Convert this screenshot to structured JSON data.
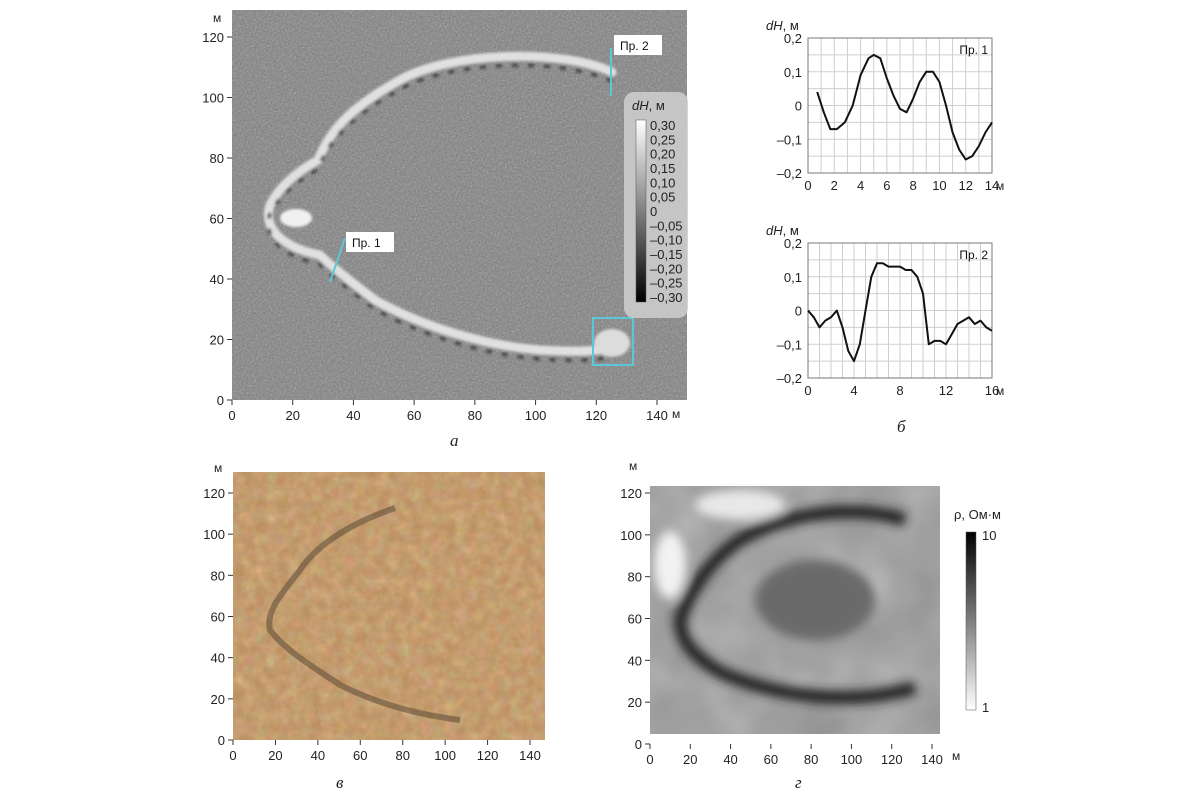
{
  "unit_m": "м",
  "panel_a": {
    "caption": "а",
    "x_ticks": [
      "0",
      "20",
      "40",
      "60",
      "80",
      "100",
      "120",
      "140"
    ],
    "y_ticks": [
      "0",
      "20",
      "40",
      "60",
      "80",
      "100",
      "120"
    ],
    "profile1_label": "Пр. 1",
    "profile2_label": "Пр. 2",
    "colorbar": {
      "title_var": "dH",
      "title_unit": ", м",
      "labels": [
        "0,30",
        "0,25",
        "0,20",
        "0,15",
        "0,10",
        "0,05",
        "0",
        "–0,05",
        "–0,10",
        "–0,15",
        "–0,20",
        "–0,25",
        "–0,30"
      ]
    }
  },
  "panel_b": {
    "caption": "б"
  },
  "chart_data": [
    {
      "type": "line",
      "panel": "б",
      "ylabel_var": "dH",
      "ylabel_unit": ", м",
      "series_label": "Пр. 1",
      "xlim": [
        0,
        14
      ],
      "ylim": [
        -0.2,
        0.2
      ],
      "x_ticks": [
        "0",
        "2",
        "4",
        "6",
        "8",
        "10",
        "12",
        "14"
      ],
      "y_ticks": [
        "0,2",
        "0,1",
        "0",
        "–0,1",
        "–0,2"
      ],
      "x": [
        0.7,
        1.2,
        1.7,
        2.2,
        2.8,
        3.4,
        4.0,
        4.6,
        5.0,
        5.5,
        6.0,
        6.5,
        7.0,
        7.5,
        8.0,
        8.5,
        9.0,
        9.5,
        10.0,
        10.5,
        11.0,
        11.5,
        12.0,
        12.5,
        13.0,
        13.5,
        14.0
      ],
      "y": [
        0.04,
        -0.02,
        -0.07,
        -0.07,
        -0.05,
        0.0,
        0.09,
        0.14,
        0.15,
        0.14,
        0.08,
        0.03,
        -0.01,
        -0.02,
        0.02,
        0.07,
        0.1,
        0.1,
        0.07,
        0.0,
        -0.08,
        -0.13,
        -0.16,
        -0.15,
        -0.12,
        -0.08,
        -0.05
      ]
    },
    {
      "type": "line",
      "panel": "б",
      "ylabel_var": "dH",
      "ylabel_unit": ", м",
      "series_label": "Пр. 2",
      "xlim": [
        0,
        16
      ],
      "ylim": [
        -0.2,
        0.2
      ],
      "x_ticks": [
        "0",
        "4",
        "8",
        "12",
        "16"
      ],
      "y_ticks": [
        "0,2",
        "0,1",
        "0",
        "–0,1",
        "–0,2"
      ],
      "x": [
        0,
        0.5,
        1.0,
        1.5,
        2.0,
        2.5,
        3.0,
        3.5,
        4.0,
        4.5,
        5.0,
        5.5,
        6.0,
        6.5,
        7.0,
        7.5,
        8.0,
        8.5,
        9.0,
        9.5,
        10.0,
        10.5,
        11.0,
        11.5,
        12.0,
        12.5,
        13.0,
        13.5,
        14.0,
        14.5,
        15.0,
        15.5,
        16.0
      ],
      "y": [
        0.0,
        -0.02,
        -0.05,
        -0.03,
        -0.02,
        0.0,
        -0.05,
        -0.12,
        -0.15,
        -0.1,
        0.0,
        0.1,
        0.14,
        0.14,
        0.13,
        0.13,
        0.13,
        0.12,
        0.12,
        0.1,
        0.05,
        -0.1,
        -0.09,
        -0.09,
        -0.1,
        -0.07,
        -0.04,
        -0.03,
        -0.02,
        -0.04,
        -0.03,
        -0.05,
        -0.06
      ]
    }
  ],
  "panel_v": {
    "caption": "в",
    "x_ticks": [
      "0",
      "20",
      "40",
      "60",
      "80",
      "100",
      "120",
      "140"
    ],
    "y_ticks": [
      "0",
      "20",
      "40",
      "60",
      "80",
      "100",
      "120"
    ]
  },
  "panel_g": {
    "caption": "г",
    "x_ticks": [
      "0",
      "20",
      "40",
      "60",
      "80",
      "100",
      "120",
      "140"
    ],
    "y_ticks": [
      "0",
      "20",
      "40",
      "60",
      "80",
      "100",
      "120"
    ],
    "colorbar": {
      "title": "ρ, Ом·м",
      "max_label": "10",
      "min_label": "1"
    }
  }
}
